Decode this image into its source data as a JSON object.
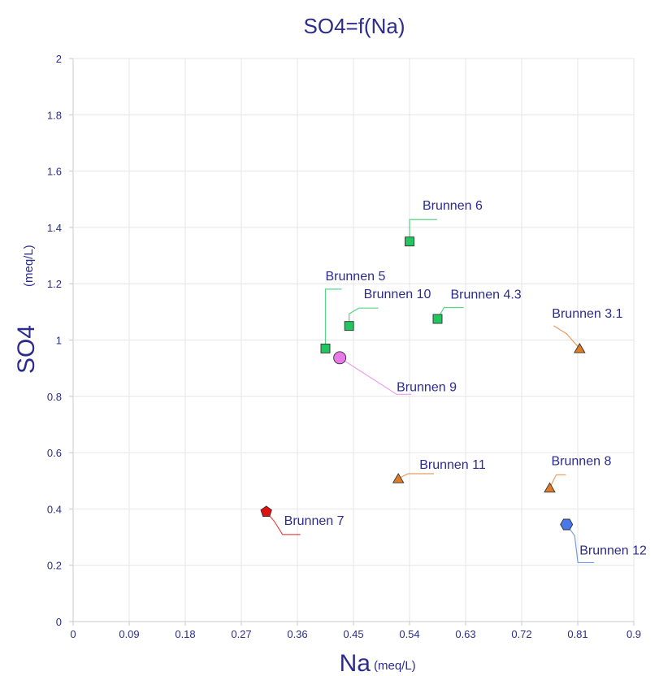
{
  "chart_data": {
    "type": "scatter",
    "title": "SO4=f(Na)",
    "xlabel": "Na",
    "xunit": "(meq/L)",
    "ylabel": "SO4",
    "yunit": "(meq/L)",
    "xlim": [
      0,
      0.9
    ],
    "ylim": [
      0,
      2
    ],
    "xticks": [
      "0",
      "0.09",
      "0.18",
      "0.27",
      "0.36",
      "0.45",
      "0.54",
      "0.63",
      "0.72",
      "0.81",
      "0.9"
    ],
    "yticks": [
      "0",
      "0.2",
      "0.4",
      "0.6",
      "0.8",
      "1",
      "1.2",
      "1.4",
      "1.6",
      "1.8",
      "2"
    ],
    "grid": true,
    "points": [
      {
        "label": "Brunnen 6",
        "x": 0.54,
        "y": 1.35,
        "marker": "square",
        "color": "#22c55e"
      },
      {
        "label": "Brunnen 5",
        "x": 0.405,
        "y": 0.97,
        "marker": "square",
        "color": "#22c55e"
      },
      {
        "label": "Brunnen 10",
        "x": 0.443,
        "y": 1.05,
        "marker": "square",
        "color": "#22c55e"
      },
      {
        "label": "Brunnen 4.3",
        "x": 0.585,
        "y": 1.075,
        "marker": "square",
        "color": "#22c55e"
      },
      {
        "label": "Brunnen 9",
        "x": 0.428,
        "y": 0.937,
        "marker": "circle",
        "color": "#e879e8"
      },
      {
        "label": "Brunnen 3.1",
        "x": 0.813,
        "y": 0.97,
        "marker": "triangle",
        "color": "#e07b28"
      },
      {
        "label": "Brunnen 11",
        "x": 0.522,
        "y": 0.508,
        "marker": "triangle",
        "color": "#e07b28"
      },
      {
        "label": "Brunnen 8",
        "x": 0.765,
        "y": 0.475,
        "marker": "triangle",
        "color": "#e07b28"
      },
      {
        "label": "Brunnen 7",
        "x": 0.31,
        "y": 0.39,
        "marker": "pentagon",
        "color": "#e01010"
      },
      {
        "label": "Brunnen 12",
        "x": 0.792,
        "y": 0.345,
        "marker": "hexagon",
        "color": "#4a78e8"
      }
    ]
  }
}
